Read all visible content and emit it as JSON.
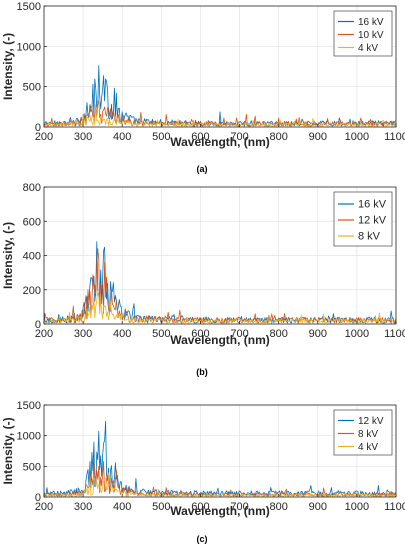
{
  "chart_data": [
    {
      "type": "line",
      "panel_label": "(a)",
      "xlabel": "Wavelength, (nm)",
      "ylabel": "Intensity, (-)",
      "xlim": [
        200,
        1100
      ],
      "ylim": [
        0,
        1500
      ],
      "xticks": [
        200,
        300,
        400,
        500,
        600,
        700,
        800,
        900,
        1000,
        1100
      ],
      "yticks": [
        0,
        500,
        1000,
        1500
      ],
      "grid": true,
      "legend_position": "top-right",
      "series": [
        {
          "name": "16 kV",
          "color": "#0072BD",
          "base": 80,
          "x": [
            300,
            315,
            325,
            337,
            345,
            357,
            365,
            380,
            400,
            430
          ],
          "y": [
            150,
            400,
            550,
            1000,
            700,
            900,
            500,
            500,
            250,
            130
          ]
        },
        {
          "name": "10 kV",
          "color": "#D95319",
          "base": 70,
          "x": [
            300,
            315,
            325,
            337,
            345,
            357,
            365,
            380,
            400,
            430
          ],
          "y": [
            120,
            250,
            300,
            350,
            280,
            320,
            250,
            220,
            150,
            100
          ]
        },
        {
          "name": "4 kV",
          "color": "#EDB120",
          "base": 55,
          "x": [
            300,
            315,
            325,
            337,
            345,
            357,
            365,
            380,
            400,
            430
          ],
          "y": [
            90,
            140,
            160,
            220,
            150,
            180,
            140,
            120,
            90,
            70
          ]
        }
      ]
    },
    {
      "type": "line",
      "panel_label": "(b)",
      "xlabel": "Wavelength, (nm)",
      "ylabel": "Intensity, (-)",
      "xlim": [
        200,
        1100
      ],
      "ylim": [
        0,
        800
      ],
      "xticks": [
        200,
        300,
        400,
        500,
        600,
        700,
        800,
        900,
        1000,
        1100
      ],
      "yticks": [
        0,
        200,
        400,
        600,
        800
      ],
      "grid": true,
      "legend_position": "top-right",
      "series": [
        {
          "name": "16 kV",
          "color": "#0072BD",
          "base": 40,
          "x": [
            300,
            315,
            325,
            337,
            345,
            357,
            365,
            380,
            400,
            430
          ],
          "y": [
            100,
            300,
            400,
            600,
            350,
            520,
            300,
            250,
            100,
            60
          ]
        },
        {
          "name": "12 kV",
          "color": "#D95319",
          "base": 40,
          "x": [
            300,
            315,
            325,
            337,
            345,
            357,
            365,
            380,
            400,
            430
          ],
          "y": [
            90,
            250,
            300,
            480,
            280,
            420,
            250,
            200,
            90,
            60
          ]
        },
        {
          "name": "8 kV",
          "color": "#EDB120",
          "base": 30,
          "x": [
            300,
            315,
            325,
            337,
            345,
            357,
            365,
            380,
            400,
            430
          ],
          "y": [
            60,
            150,
            200,
            260,
            170,
            220,
            140,
            110,
            60,
            40
          ]
        }
      ]
    },
    {
      "type": "line",
      "panel_label": "(c)",
      "xlabel": "Wavelength, (nm)",
      "ylabel": "Intensity, (-)",
      "xlim": [
        200,
        1100
      ],
      "ylim": [
        0,
        1500
      ],
      "xticks": [
        200,
        300,
        400,
        500,
        600,
        700,
        800,
        900,
        1000,
        1100
      ],
      "yticks": [
        0,
        500,
        1000,
        1500
      ],
      "grid": true,
      "legend_position": "top-right",
      "series": [
        {
          "name": "12 kV",
          "color": "#0072BD",
          "base": 100,
          "x": [
            300,
            315,
            325,
            337,
            345,
            357,
            365,
            380,
            400,
            430
          ],
          "y": [
            200,
            650,
            800,
            1270,
            800,
            1080,
            650,
            600,
            300,
            150
          ]
        },
        {
          "name": "8 kV",
          "color": "#D95319",
          "base": 70,
          "x": [
            300,
            315,
            325,
            337,
            345,
            357,
            365,
            380,
            400,
            430
          ],
          "y": [
            150,
            400,
            550,
            700,
            500,
            650,
            400,
            350,
            200,
            110
          ]
        },
        {
          "name": "4 kV",
          "color": "#EDB120",
          "base": 50,
          "x": [
            300,
            315,
            325,
            337,
            345,
            357,
            365,
            380,
            400,
            430
          ],
          "y": [
            90,
            200,
            250,
            400,
            230,
            350,
            200,
            180,
            100,
            70
          ]
        }
      ]
    }
  ]
}
